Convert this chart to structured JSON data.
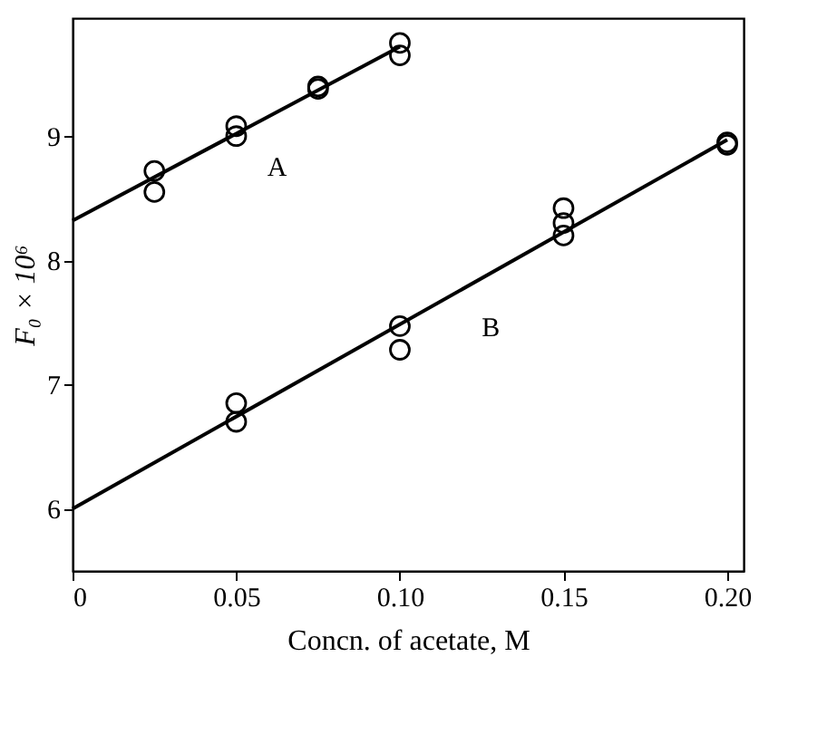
{
  "chart_data": {
    "type": "scatter",
    "xlabel": "Concn. of acetate, M",
    "ylabel": "F₀ × 10⁶",
    "xlim": [
      0,
      0.205
    ],
    "xticks": [
      0,
      0.05,
      {
        "value": 0.1,
        "label": "0.10"
      },
      0.15,
      {
        "value": 0.2,
        "label": "0.20"
      }
    ],
    "ylim": [
      5.5,
      9.95
    ],
    "yticks": [
      6,
      7,
      8,
      9
    ],
    "marker": "circle",
    "series": [
      {
        "name": "A",
        "color": "#000000",
        "x": [
          0.025,
          0.025,
          0.05,
          0.05,
          0.075,
          0.075,
          0.1,
          0.1
        ],
        "values": [
          8.72,
          8.55,
          9.08,
          9.0,
          9.38,
          9.4,
          9.75,
          9.65
        ]
      },
      {
        "name": "B",
        "color": "#000000",
        "x": [
          0.05,
          0.05,
          0.1,
          0.1,
          0.15,
          0.15,
          0.15,
          0.2,
          0.2
        ],
        "values": [
          6.85,
          6.7,
          7.47,
          7.28,
          8.42,
          8.3,
          8.2,
          8.95,
          8.93
        ]
      },
      {
        "type": "line",
        "color": "#000000",
        "marker": "none",
        "line_style": "solid",
        "x": [
          0,
          0.1
        ],
        "values": [
          8.32,
          9.72
        ]
      },
      {
        "type": "line",
        "color": "#000000",
        "marker": "none",
        "line_style": "solid",
        "x": [
          0,
          0.2
        ],
        "values": [
          6.0,
          8.97
        ]
      }
    ]
  }
}
